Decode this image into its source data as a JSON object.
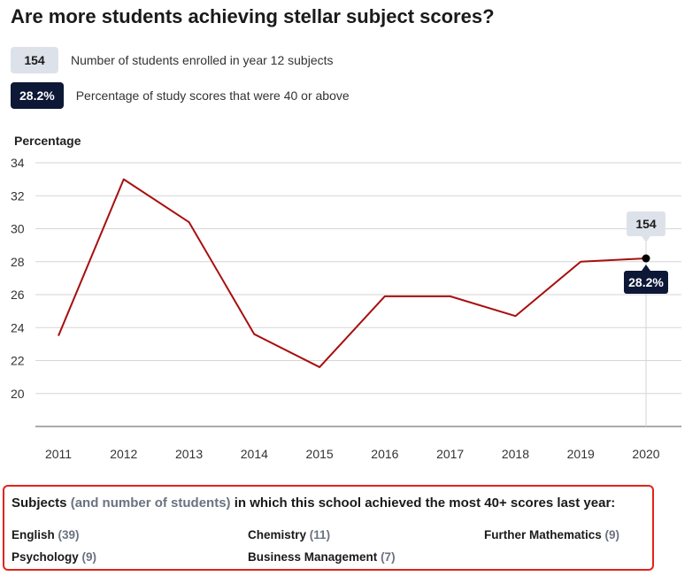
{
  "title": "Are more students achieving stellar subject scores?",
  "legend": {
    "students": {
      "badge": "154",
      "text": "Number of students enrolled in year 12 subjects"
    },
    "percentage": {
      "badge": "28.2%",
      "text": "Percentage of study scores that were 40 or above"
    }
  },
  "colors": {
    "line": "#a80f0f",
    "dark_badge": "#0d1836",
    "light_badge": "#dde2ea",
    "highlight_border": "#e2231a"
  },
  "chart_data": {
    "type": "line",
    "ylabel": "Percentage",
    "xlabel": "",
    "x": [
      "2011",
      "2012",
      "2013",
      "2014",
      "2015",
      "2016",
      "2017",
      "2018",
      "2019",
      "2020"
    ],
    "series": [
      {
        "values": [
          23.5,
          33.0,
          30.4,
          23.6,
          21.6,
          25.9,
          25.9,
          24.7,
          28.0,
          28.2
        ]
      }
    ],
    "yticks": [
      20,
      22,
      24,
      26,
      28,
      30,
      32,
      34
    ],
    "ylim": [
      18,
      34
    ],
    "grid": true,
    "annotation": {
      "x": "2020",
      "above": "154",
      "below": "28.2%"
    }
  },
  "footer": {
    "heading_start": "Subjects",
    "heading_muted": "(and number of students)",
    "heading_end": "in which this school achieved the most 40+ scores last year:",
    "subjects": [
      {
        "name": "English",
        "count": "(39)"
      },
      {
        "name": "Chemistry",
        "count": "(11)"
      },
      {
        "name": "Further Mathematics",
        "count": "(9)"
      },
      {
        "name": "Psychology",
        "count": "(9)"
      },
      {
        "name": "Business Management",
        "count": "(7)"
      }
    ]
  }
}
